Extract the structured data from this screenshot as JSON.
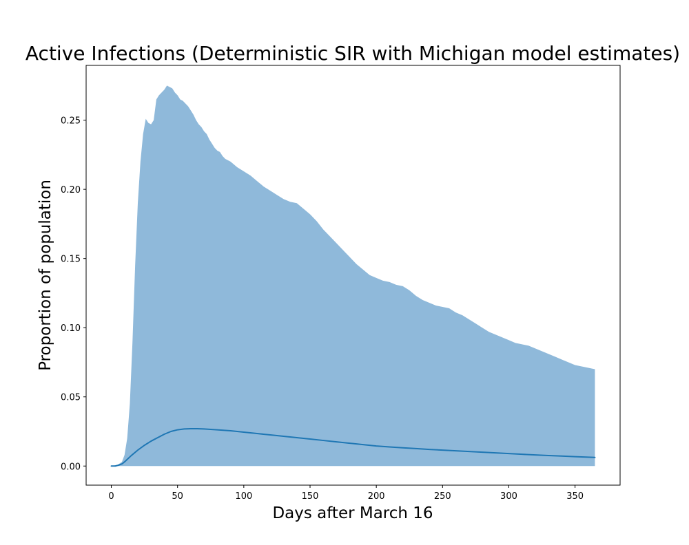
{
  "chart_data": {
    "type": "area",
    "title": "Active Infections (Deterministic SIR with Michigan model estimates)",
    "xlabel": "Days after March 16",
    "ylabel": "Proportion of population",
    "xlim": [
      -19,
      384
    ],
    "ylim": [
      -0.0138,
      0.2896
    ],
    "xticks": [
      0,
      50,
      100,
      150,
      200,
      250,
      300,
      350
    ],
    "xtick_labels": [
      "0",
      "50",
      "100",
      "150",
      "200",
      "250",
      "300",
      "350"
    ],
    "yticks": [
      0.0,
      0.05,
      0.1,
      0.15,
      0.2,
      0.25
    ],
    "ytick_labels": [
      "0.00",
      "0.05",
      "0.10",
      "0.15",
      "0.20",
      "0.25"
    ],
    "grid": false,
    "colors": {
      "line": "#1f77b4",
      "band": "#8fb9da",
      "axes": "#000000"
    },
    "series": [
      {
        "type": "band",
        "x": [
          0,
          5,
          8,
          10,
          12,
          14,
          16,
          18,
          20,
          22,
          24,
          26,
          28,
          30,
          32,
          34,
          36,
          38,
          40,
          42,
          44,
          46,
          48,
          50,
          52,
          54,
          56,
          58,
          60,
          62,
          64,
          66,
          68,
          70,
          72,
          74,
          76,
          78,
          80,
          82,
          84,
          86,
          88,
          90,
          95,
          100,
          105,
          110,
          115,
          120,
          125,
          130,
          135,
          140,
          145,
          150,
          155,
          160,
          165,
          170,
          175,
          180,
          185,
          190,
          195,
          200,
          205,
          210,
          215,
          220,
          225,
          230,
          235,
          240,
          245,
          250,
          255,
          260,
          265,
          270,
          275,
          280,
          285,
          290,
          295,
          300,
          305,
          310,
          315,
          320,
          325,
          330,
          335,
          340,
          345,
          350,
          355,
          360,
          365
        ],
        "upper": [
          0.0,
          0.001,
          0.003,
          0.008,
          0.02,
          0.045,
          0.09,
          0.145,
          0.19,
          0.22,
          0.24,
          0.251,
          0.248,
          0.247,
          0.25,
          0.265,
          0.268,
          0.27,
          0.272,
          0.275,
          0.274,
          0.273,
          0.27,
          0.268,
          0.265,
          0.264,
          0.262,
          0.26,
          0.257,
          0.254,
          0.25,
          0.247,
          0.245,
          0.242,
          0.24,
          0.236,
          0.233,
          0.23,
          0.228,
          0.227,
          0.224,
          0.222,
          0.221,
          0.22,
          0.216,
          0.213,
          0.21,
          0.206,
          0.202,
          0.199,
          0.196,
          0.193,
          0.191,
          0.19,
          0.186,
          0.182,
          0.177,
          0.171,
          0.166,
          0.161,
          0.156,
          0.151,
          0.146,
          0.142,
          0.138,
          0.136,
          0.134,
          0.133,
          0.131,
          0.13,
          0.127,
          0.123,
          0.12,
          0.118,
          0.116,
          0.115,
          0.114,
          0.111,
          0.109,
          0.106,
          0.103,
          0.1,
          0.097,
          0.095,
          0.093,
          0.091,
          0.089,
          0.088,
          0.087,
          0.085,
          0.083,
          0.081,
          0.079,
          0.077,
          0.075,
          0.073,
          0.072,
          0.071,
          0.07
        ],
        "lower": [
          0.0,
          0.0,
          0.0,
          0.0,
          0.0,
          0.0,
          0.0,
          0.0,
          0.0,
          0.0,
          0.0,
          0.0,
          0.0,
          0.0,
          0.0,
          0.0,
          0.0,
          0.0,
          0.0,
          0.0,
          0.0,
          0.0,
          0.0,
          0.0,
          0.0,
          0.0,
          0.0,
          0.0,
          0.0,
          0.0,
          0.0,
          0.0,
          0.0,
          0.0,
          0.0,
          0.0,
          0.0,
          0.0,
          0.0,
          0.0,
          0.0,
          0.0,
          0.0,
          0.0,
          0.0,
          0.0,
          0.0,
          0.0,
          0.0,
          0.0,
          0.0,
          0.0,
          0.0,
          0.0,
          0.0,
          0.0,
          0.0,
          0.0,
          0.0,
          0.0,
          0.0,
          0.0,
          0.0,
          0.0,
          0.0,
          0.0,
          0.0,
          0.0,
          0.0,
          0.0,
          0.0,
          0.0,
          0.0,
          0.0,
          0.0,
          0.0,
          0.0,
          0.0,
          0.0,
          0.0,
          0.0,
          0.0,
          0.0,
          0.0,
          0.0,
          0.0,
          0.0,
          0.0,
          0.0,
          0.0,
          0.0,
          0.0,
          0.0,
          0.0,
          0.0,
          0.0,
          0.0,
          0.0,
          0.0
        ]
      },
      {
        "type": "line",
        "x": [
          0,
          3,
          5,
          8,
          10,
          15,
          20,
          25,
          30,
          35,
          40,
          45,
          50,
          55,
          60,
          65,
          70,
          80,
          90,
          100,
          110,
          120,
          130,
          140,
          150,
          160,
          170,
          180,
          190,
          200,
          210,
          220,
          230,
          240,
          250,
          260,
          270,
          280,
          290,
          300,
          310,
          320,
          330,
          340,
          350,
          360,
          365
        ],
        "y": [
          0.0,
          0.0,
          0.0005,
          0.0015,
          0.003,
          0.0075,
          0.0115,
          0.015,
          0.018,
          0.0205,
          0.023,
          0.025,
          0.0262,
          0.0268,
          0.027,
          0.027,
          0.0268,
          0.0262,
          0.0255,
          0.0245,
          0.0235,
          0.0225,
          0.0215,
          0.0205,
          0.0195,
          0.0185,
          0.0175,
          0.0165,
          0.0155,
          0.0145,
          0.0138,
          0.0132,
          0.0126,
          0.012,
          0.0115,
          0.011,
          0.0105,
          0.01,
          0.0095,
          0.009,
          0.0085,
          0.008,
          0.0076,
          0.0072,
          0.0068,
          0.0064,
          0.0062
        ]
      }
    ]
  }
}
